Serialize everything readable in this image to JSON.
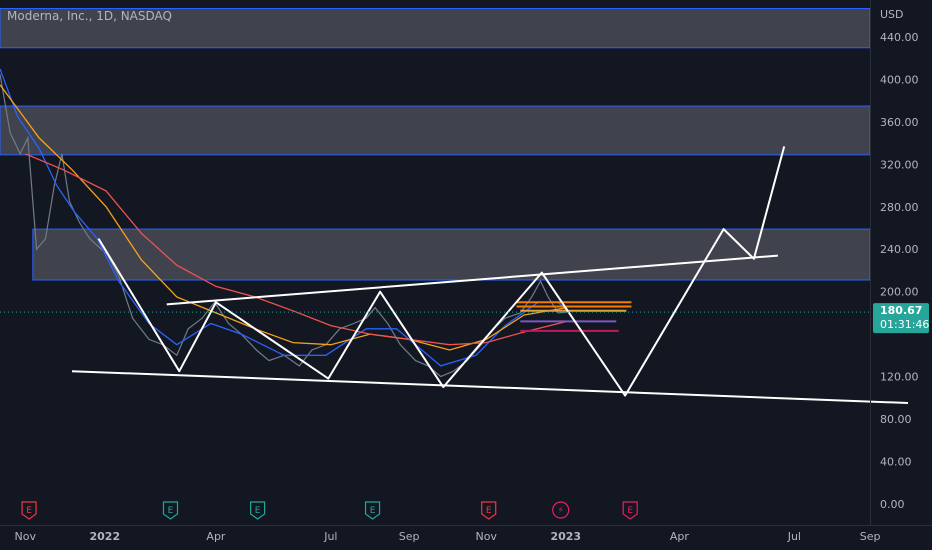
{
  "chart_data": {
    "type": "line",
    "title": "Moderna, Inc., 1D, NASDAQ",
    "currency_label": "USD",
    "price_axis": {
      "ticks": [
        440,
        400,
        360,
        320,
        280,
        240,
        200,
        120,
        80,
        40,
        0
      ],
      "tick_labels": [
        "440.00",
        "400.00",
        "360.00",
        "320.00",
        "280.00",
        "240.00",
        "200.00",
        "120.00",
        "80.00",
        "40.00",
        "0.00"
      ],
      "range": [
        -20,
        475
      ]
    },
    "time_axis": {
      "labels": [
        "Nov",
        "2022",
        "Apr",
        "Jul",
        "Sep",
        "Nov",
        "2023",
        "Apr",
        "Jul",
        "Sep"
      ],
      "label_dates": [
        "2021-11-01",
        "2022-01-03",
        "2022-04-01",
        "2022-07-01",
        "2022-09-01",
        "2022-11-01",
        "2023-01-03",
        "2023-04-03",
        "2023-07-03",
        "2023-09-01"
      ],
      "range": [
        "2021-10-12",
        "2023-10-20"
      ]
    },
    "last_price": {
      "value": 180.67,
      "label": "180.67",
      "countdown": "01:31:46",
      "color": "#26a69a"
    },
    "zones": [
      {
        "y_low": 430,
        "y_high": 467
      },
      {
        "y_low": 329,
        "y_high": 375
      },
      {
        "y_low": 211,
        "y_high": 259
      }
    ],
    "close_series": {
      "name": "",
      "color": "#6f7b88",
      "points": [
        [
          "2021-10-12",
          405
        ],
        [
          "2021-10-20",
          350
        ],
        [
          "2021-10-28",
          330
        ],
        [
          "2021-11-03",
          345
        ],
        [
          "2021-11-10",
          240
        ],
        [
          "2021-11-17",
          250
        ],
        [
          "2021-11-24",
          300
        ],
        [
          "2021-11-30",
          330
        ],
        [
          "2021-12-06",
          285
        ],
        [
          "2021-12-14",
          265
        ],
        [
          "2021-12-22",
          250
        ],
        [
          "2022-01-05",
          235
        ],
        [
          "2022-01-14",
          215
        ],
        [
          "2022-01-25",
          175
        ],
        [
          "2022-02-07",
          155
        ],
        [
          "2022-02-18",
          150
        ],
        [
          "2022-03-01",
          140
        ],
        [
          "2022-03-10",
          165
        ],
        [
          "2022-03-21",
          175
        ],
        [
          "2022-03-31",
          190
        ],
        [
          "2022-04-11",
          170
        ],
        [
          "2022-04-21",
          160
        ],
        [
          "2022-05-03",
          145
        ],
        [
          "2022-05-13",
          135
        ],
        [
          "2022-05-25",
          140
        ],
        [
          "2022-06-06",
          130
        ],
        [
          "2022-06-16",
          145
        ],
        [
          "2022-06-27",
          150
        ],
        [
          "2022-07-08",
          165
        ],
        [
          "2022-07-19",
          170
        ],
        [
          "2022-07-29",
          175
        ],
        [
          "2022-08-05",
          185
        ],
        [
          "2022-08-15",
          170
        ],
        [
          "2022-08-25",
          150
        ],
        [
          "2022-09-06",
          135
        ],
        [
          "2022-09-16",
          130
        ],
        [
          "2022-09-26",
          120
        ],
        [
          "2022-10-06",
          125
        ],
        [
          "2022-10-17",
          135
        ],
        [
          "2022-10-28",
          150
        ],
        [
          "2022-11-07",
          165
        ],
        [
          "2022-11-16",
          175
        ],
        [
          "2022-11-28",
          180
        ],
        [
          "2022-12-07",
          195
        ],
        [
          "2022-12-14",
          210
        ],
        [
          "2022-12-20",
          195
        ],
        [
          "2022-12-28",
          180
        ],
        [
          "2023-01-04",
          180.67
        ]
      ]
    },
    "moving_averages": [
      {
        "name": "",
        "color": "#2962ff",
        "points": [
          [
            "2021-10-12",
            410
          ],
          [
            "2021-10-26",
            365
          ],
          [
            "2021-11-12",
            335
          ],
          [
            "2021-11-26",
            300
          ],
          [
            "2021-12-10",
            275
          ],
          [
            "2021-12-28",
            250
          ],
          [
            "2022-01-14",
            210
          ],
          [
            "2022-02-07",
            170
          ],
          [
            "2022-03-01",
            150
          ],
          [
            "2022-03-28",
            170
          ],
          [
            "2022-04-21",
            160
          ],
          [
            "2022-05-25",
            140
          ],
          [
            "2022-06-27",
            140
          ],
          [
            "2022-07-29",
            165
          ],
          [
            "2022-08-22",
            165
          ],
          [
            "2022-09-26",
            130
          ],
          [
            "2022-10-24",
            140
          ],
          [
            "2022-11-16",
            168
          ],
          [
            "2022-12-12",
            190
          ],
          [
            "2022-12-28",
            190
          ],
          [
            "2023-01-04",
            182
          ]
        ]
      },
      {
        "name": "",
        "color": "#f7a21b",
        "points": [
          [
            "2021-10-12",
            395
          ],
          [
            "2021-11-12",
            345
          ],
          [
            "2021-12-08",
            315
          ],
          [
            "2022-01-04",
            280
          ],
          [
            "2022-02-01",
            230
          ],
          [
            "2022-03-01",
            195
          ],
          [
            "2022-04-01",
            180
          ],
          [
            "2022-05-02",
            165
          ],
          [
            "2022-06-01",
            152
          ],
          [
            "2022-07-01",
            150
          ],
          [
            "2022-08-01",
            160
          ],
          [
            "2022-09-01",
            155
          ],
          [
            "2022-10-03",
            145
          ],
          [
            "2022-11-01",
            155
          ],
          [
            "2022-12-01",
            178
          ],
          [
            "2023-01-04",
            185
          ]
        ]
      },
      {
        "name": "",
        "color": "#ef5350",
        "points": [
          [
            "2021-11-01",
            330
          ],
          [
            "2021-12-01",
            315
          ],
          [
            "2022-01-04",
            295
          ],
          [
            "2022-02-01",
            255
          ],
          [
            "2022-03-01",
            225
          ],
          [
            "2022-04-01",
            205
          ],
          [
            "2022-05-02",
            195
          ],
          [
            "2022-06-01",
            182
          ],
          [
            "2022-07-01",
            168
          ],
          [
            "2022-08-01",
            160
          ],
          [
            "2022-09-01",
            155
          ],
          [
            "2022-10-03",
            150
          ],
          [
            "2022-11-01",
            152
          ],
          [
            "2022-12-01",
            162
          ],
          [
            "2023-01-04",
            172
          ]
        ]
      }
    ],
    "drawings": {
      "upper_trendline": [
        [
          "2022-02-21",
          188
        ],
        [
          "2023-06-20",
          234
        ]
      ],
      "lower_trendline": [
        [
          "2021-12-08",
          125
        ],
        [
          "2023-10-01",
          95
        ]
      ],
      "pattern_path": [
        [
          "2021-12-29",
          250
        ],
        [
          "2022-03-03",
          125
        ],
        [
          "2022-04-01",
          190
        ],
        [
          "2022-06-29",
          118
        ],
        [
          "2022-08-09",
          200
        ],
        [
          "2022-09-28",
          110
        ],
        [
          "2022-12-15",
          218
        ],
        [
          "2023-02-19",
          102
        ],
        [
          "2023-05-08",
          259
        ],
        [
          "2023-06-01",
          231
        ],
        [
          "2023-06-25",
          337
        ]
      ]
    },
    "horizontal_levels": [
      {
        "y": 190,
        "x_from": "2022-11-25",
        "x_to": "2023-02-24",
        "color": "#f57c00"
      },
      {
        "y": 186,
        "x_from": "2022-11-25",
        "x_to": "2023-02-24",
        "color": "#f57c00"
      },
      {
        "y": 182,
        "x_from": "2022-11-28",
        "x_to": "2023-02-20",
        "color": "#e0a03a"
      },
      {
        "y": 172,
        "x_from": "2022-11-28",
        "x_to": "2023-02-12",
        "color": "#7e57c2"
      },
      {
        "y": 163,
        "x_from": "2022-11-28",
        "x_to": "2023-02-14",
        "color": "#c2185b"
      }
    ],
    "event_markers": [
      {
        "date": "2021-11-04",
        "label": "E",
        "type": "earnings-missed",
        "color": "#f23645"
      },
      {
        "date": "2022-02-24",
        "label": "E",
        "type": "earnings-beat",
        "color": "#26a69a"
      },
      {
        "date": "2022-05-04",
        "label": "E",
        "type": "earnings-beat",
        "color": "#26a69a"
      },
      {
        "date": "2022-08-03",
        "label": "E",
        "type": "earnings-beat",
        "color": "#26a69a"
      },
      {
        "date": "2022-11-03",
        "label": "E",
        "type": "earnings-missed",
        "color": "#f23645"
      },
      {
        "date": "2022-12-30",
        "label": "⚡",
        "type": "dividend-split",
        "color": "#e91e63"
      },
      {
        "date": "2023-02-23",
        "label": "E",
        "type": "earnings-upcoming",
        "color": "#e91e63"
      }
    ],
    "grid": false,
    "legend": "none"
  }
}
